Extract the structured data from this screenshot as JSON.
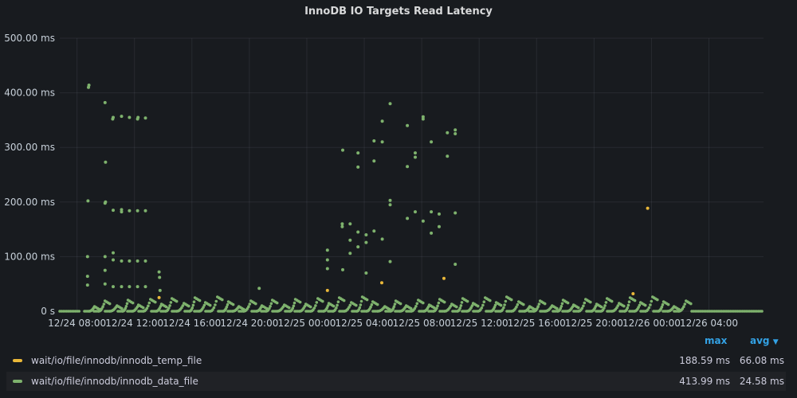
{
  "panel": {
    "title": "InnoDB IO Targets Read Latency"
  },
  "chart_data": {
    "type": "scatter",
    "title": "InnoDB IO Targets Read Latency",
    "xlabel": "",
    "ylabel": "",
    "y_unit": "ms",
    "ylim": [
      0,
      500
    ],
    "y_ticks": [
      "0 s",
      "100.00 ms",
      "200.00 ms",
      "300.00 ms",
      "400.00 ms",
      "500.00 ms"
    ],
    "y_tick_values": [
      0,
      100,
      200,
      300,
      400,
      500
    ],
    "xlim": [
      "12/24 06:48",
      "12/26 07:48"
    ],
    "x_ticks": [
      "12/24 08:00",
      "12/24 12:00",
      "12/24 16:00",
      "12/24 20:00",
      "12/25 00:00",
      "12/25 04:00",
      "12/25 08:00",
      "12/25 12:00",
      "12/25 16:00",
      "12/25 20:00",
      "12/26 00:00",
      "12/26 04:00"
    ],
    "grid": true,
    "legend_placement": "bottom",
    "series": [
      {
        "name": "wait/io/file/innodb/innodb_temp_file",
        "color": "#eab839",
        "points": [
          [
            "12/24 13:43",
            25
          ],
          [
            "12/25 01:26",
            38
          ],
          [
            "12/25 05:13",
            52
          ],
          [
            "12/25 09:33",
            60
          ],
          [
            "12/25 22:43",
            32
          ],
          [
            "12/25 23:44",
            188.59
          ]
        ]
      },
      {
        "name": "wait/io/file/innodb/innodb_data_file",
        "color": "#7eb26d",
        "points": [
          [
            "12/24 08:44",
            48
          ],
          [
            "12/24 08:44",
            64
          ],
          [
            "12/24 08:44",
            100
          ],
          [
            "12/24 08:46",
            202
          ],
          [
            "12/24 08:48",
            410
          ],
          [
            "12/24 08:50",
            413.99
          ],
          [
            "12/24 09:57",
            382
          ],
          [
            "12/24 09:57",
            198
          ],
          [
            "12/24 09:59",
            200
          ],
          [
            "12/24 09:59",
            273
          ],
          [
            "12/24 09:57",
            100
          ],
          [
            "12/24 09:57",
            75
          ],
          [
            "12/24 09:57",
            50
          ],
          [
            "12/24 10:31",
            355
          ],
          [
            "12/24 10:29",
            352
          ],
          [
            "12/24 10:31",
            185
          ],
          [
            "12/24 10:31",
            107
          ],
          [
            "12/24 10:31",
            94
          ],
          [
            "12/24 10:31",
            45
          ],
          [
            "12/24 11:06",
            357
          ],
          [
            "12/24 11:06",
            186
          ],
          [
            "12/24 11:06",
            182
          ],
          [
            "12/24 11:06",
            92
          ],
          [
            "12/24 11:06",
            45
          ],
          [
            "12/24 11:39",
            355
          ],
          [
            "12/24 11:39",
            184
          ],
          [
            "12/24 11:39",
            92
          ],
          [
            "12/24 11:39",
            45
          ],
          [
            "12/24 12:13",
            352
          ],
          [
            "12/24 12:15",
            355
          ],
          [
            "12/24 12:13",
            184
          ],
          [
            "12/24 12:13",
            92
          ],
          [
            "12/24 12:13",
            45
          ],
          [
            "12/24 12:46",
            354
          ],
          [
            "12/24 12:46",
            184
          ],
          [
            "12/24 12:46",
            92
          ],
          [
            "12/24 12:46",
            45
          ],
          [
            "12/24 13:43",
            72
          ],
          [
            "12/24 13:45",
            62
          ],
          [
            "12/24 13:47",
            38
          ],
          [
            "12/24 20:41",
            42
          ],
          [
            "12/25 01:26",
            112
          ],
          [
            "12/25 01:26",
            94
          ],
          [
            "12/25 01:26",
            78
          ],
          [
            "12/25 02:28",
            155
          ],
          [
            "12/25 02:28",
            160
          ],
          [
            "12/25 02:30",
            295
          ],
          [
            "12/25 02:30",
            76
          ],
          [
            "12/25 03:01",
            160
          ],
          [
            "12/25 03:01",
            106
          ],
          [
            "12/25 03:01",
            130
          ],
          [
            "12/25 03:34",
            145
          ],
          [
            "12/25 03:34",
            264
          ],
          [
            "12/25 03:34",
            290
          ],
          [
            "12/25 03:34",
            118
          ],
          [
            "12/25 04:08",
            140
          ],
          [
            "12/25 04:08",
            70
          ],
          [
            "12/25 04:08",
            126
          ],
          [
            "12/25 04:41",
            275
          ],
          [
            "12/25 04:41",
            147
          ],
          [
            "12/25 04:41",
            312
          ],
          [
            "12/25 05:15",
            348
          ],
          [
            "12/25 05:15",
            310
          ],
          [
            "12/25 05:15",
            132
          ],
          [
            "12/25 05:48",
            380
          ],
          [
            "12/25 05:48",
            91
          ],
          [
            "12/25 05:48",
            203
          ],
          [
            "12/25 05:48",
            195
          ],
          [
            "12/25 07:00",
            265
          ],
          [
            "12/25 07:00",
            340
          ],
          [
            "12/25 07:00",
            170
          ],
          [
            "12/25 07:33",
            290
          ],
          [
            "12/25 07:33",
            282
          ],
          [
            "12/25 07:33",
            182
          ],
          [
            "12/25 08:06",
            356
          ],
          [
            "12/25 08:06",
            352
          ],
          [
            "12/25 08:06",
            165
          ],
          [
            "12/25 08:40",
            310
          ],
          [
            "12/25 08:40",
            143
          ],
          [
            "12/25 08:40",
            182
          ],
          [
            "12/25 09:13",
            155
          ],
          [
            "12/25 09:13",
            178
          ],
          [
            "12/25 09:47",
            284
          ],
          [
            "12/25 09:47",
            327
          ],
          [
            "12/25 10:20",
            332
          ],
          [
            "12/25 10:20",
            325
          ],
          [
            "12/25 10:20",
            180
          ],
          [
            "12/25 10:20",
            86
          ]
        ]
      }
    ]
  },
  "legend": {
    "headers": [
      "max",
      "avg"
    ],
    "items": [
      {
        "name": "wait/io/file/innodb/innodb_temp_file",
        "color": "#eab839",
        "max": "188.59 ms",
        "avg": "66.08 ms"
      },
      {
        "name": "wait/io/file/innodb/innodb_data_file",
        "color": "#7eb26d",
        "max": "413.99 ms",
        "avg": "24.58 ms"
      }
    ]
  }
}
